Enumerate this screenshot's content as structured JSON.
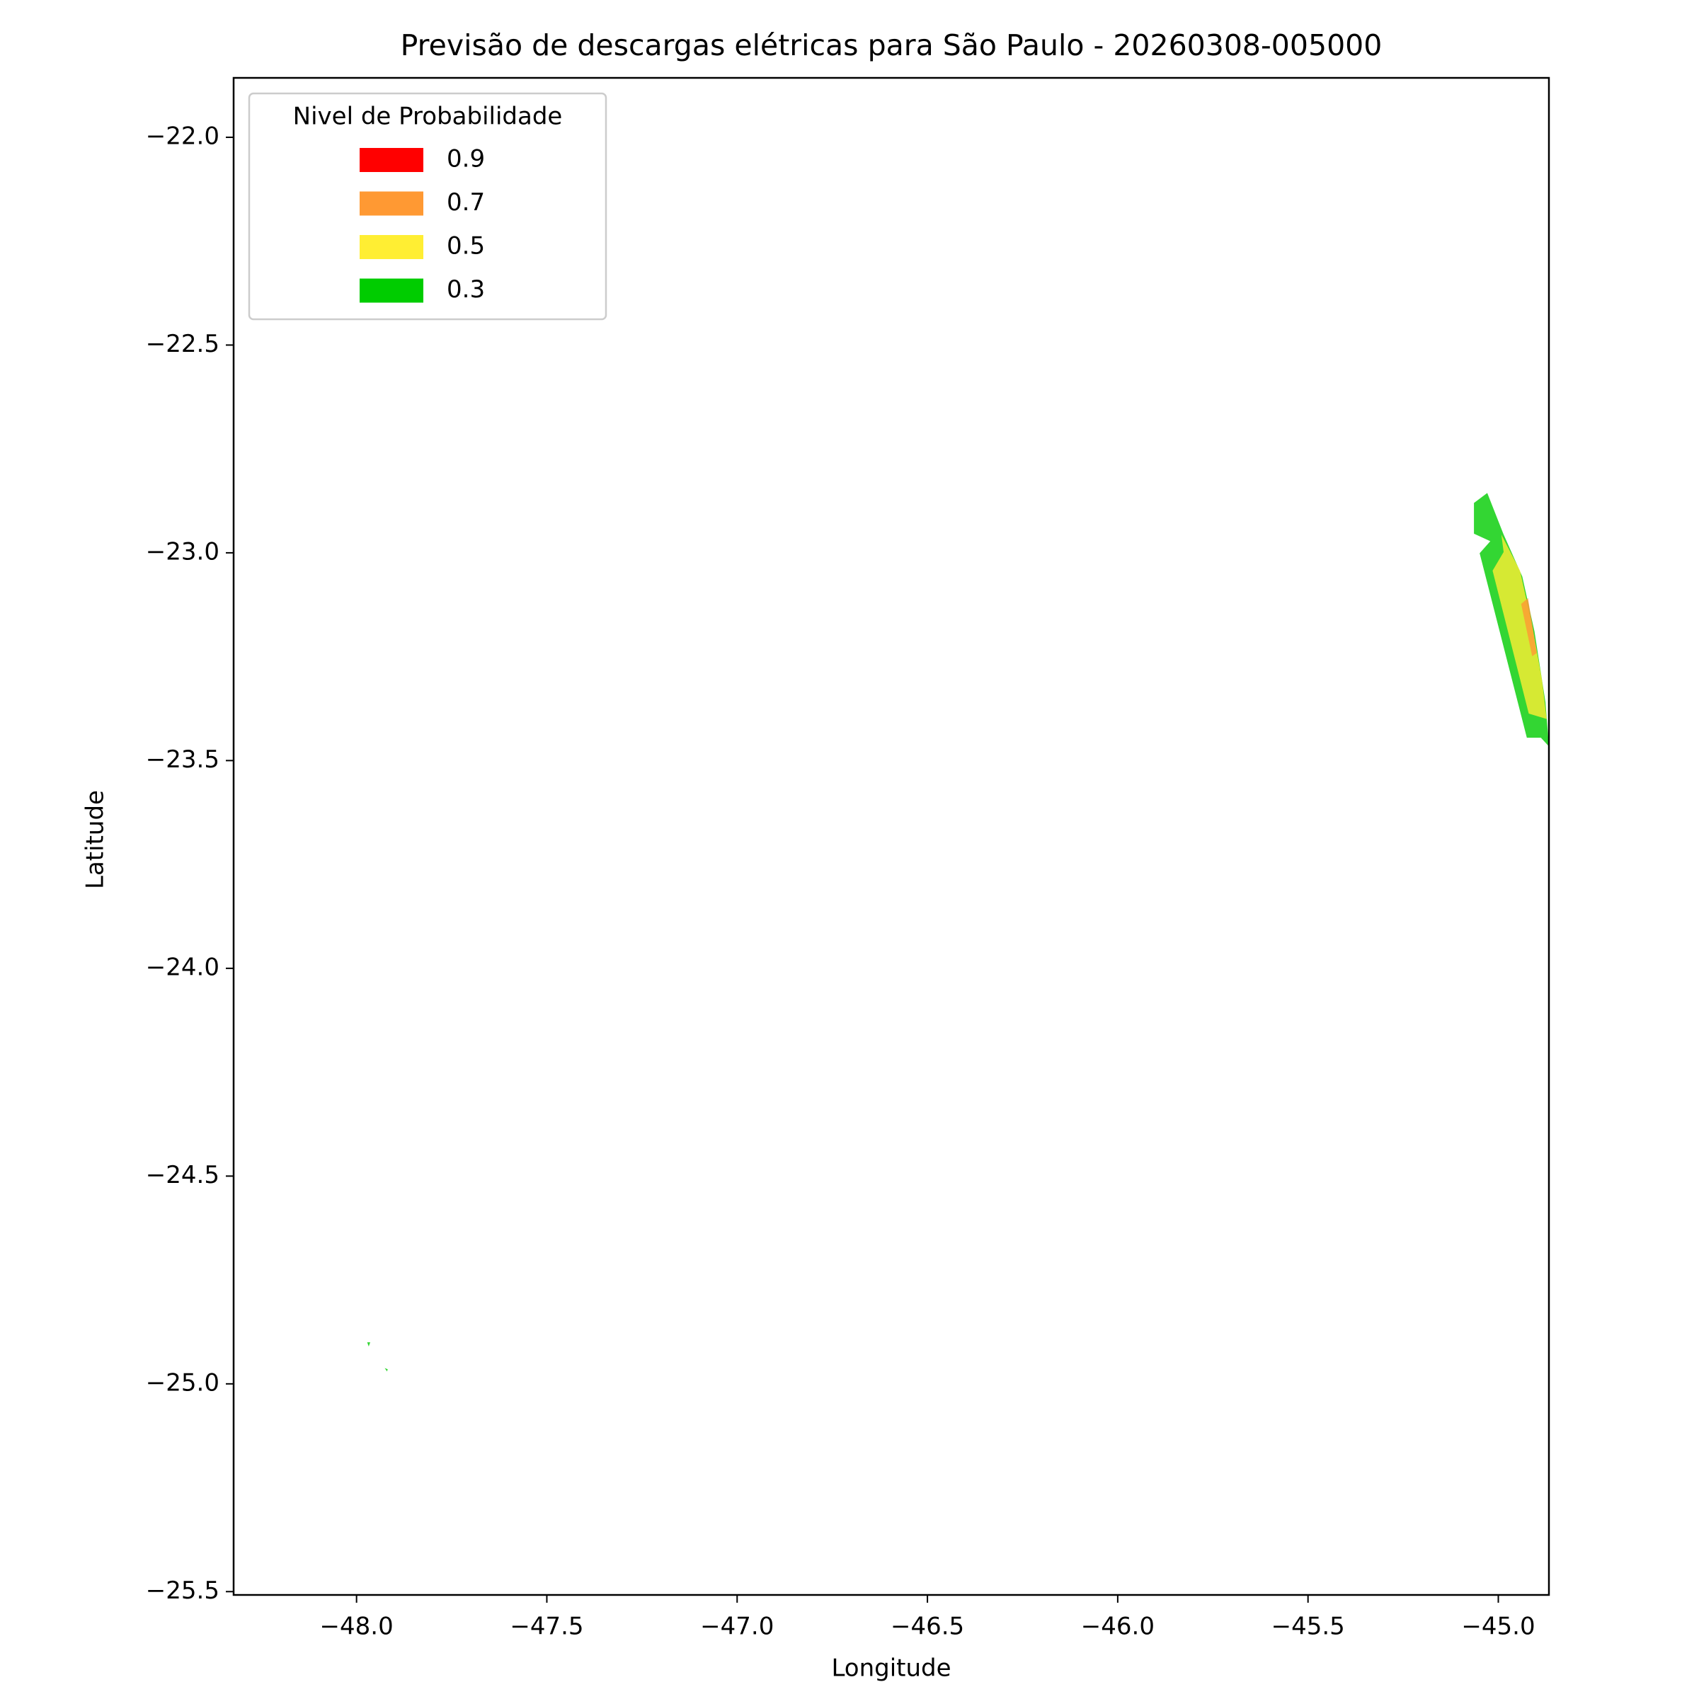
{
  "chart_data": {
    "type": "contour",
    "title": "Previsão de descargas elétricas para São Paulo - 20260308-005000",
    "x_label": "Longitude",
    "y_label": "Latitude",
    "legend_title": "Nivel de Probabilidade",
    "legend": "upper left",
    "xlim": [
      -48.323,
      -44.867
    ],
    "ylim": [
      -25.508,
      -21.857
    ],
    "xticks": [
      {
        "value": -48.0,
        "label": "−48.0"
      },
      {
        "value": -47.5,
        "label": "−47.5"
      },
      {
        "value": -47.0,
        "label": "−47.0"
      },
      {
        "value": -46.5,
        "label": "−46.5"
      },
      {
        "value": -46.0,
        "label": "−46.0"
      },
      {
        "value": -45.5,
        "label": "−45.5"
      },
      {
        "value": -45.0,
        "label": "−45.0"
      }
    ],
    "yticks": [
      {
        "value": -22.0,
        "label": "−22.0"
      },
      {
        "value": -22.5,
        "label": "−22.5"
      },
      {
        "value": -23.0,
        "label": "−23.0"
      },
      {
        "value": -23.5,
        "label": "−23.5"
      },
      {
        "value": -24.0,
        "label": "−24.0"
      },
      {
        "value": -24.5,
        "label": "−24.5"
      },
      {
        "value": -25.0,
        "label": "−25.0"
      },
      {
        "value": -25.5,
        "label": "−25.5"
      }
    ],
    "series": [
      {
        "name": "0.9",
        "color": "#ff0000",
        "polygons": []
      },
      {
        "name": "0.7",
        "color": "#ff9933",
        "polygons": [
          {
            "x": [
              -44.94,
              -44.922,
              -44.899,
              -44.911
            ],
            "y": [
              -23.123,
              -23.109,
              -23.241,
              -23.249
            ]
          }
        ]
      },
      {
        "name": "0.5",
        "color": "#ffee33",
        "polygons": [
          {
            "x": [
              -44.992,
              -44.943,
              -44.911,
              -44.885,
              -44.873,
              -44.92,
              -45.015,
              -44.986
            ],
            "y": [
              -22.956,
              -23.043,
              -23.175,
              -23.307,
              -23.4,
              -23.387,
              -23.043,
              -22.998
            ]
          }
        ]
      },
      {
        "name": "0.3",
        "color": "#00cc00",
        "polygons": [
          {
            "x": [
              -45.064,
              -45.029,
              -44.986,
              -44.937,
              -44.905,
              -44.876,
              -44.867,
              -44.888,
              -44.925,
              -45.049,
              -45.021,
              -45.064
            ],
            "y": [
              -22.88,
              -22.856,
              -22.956,
              -23.057,
              -23.189,
              -23.36,
              -23.466,
              -23.445,
              -23.445,
              -23.001,
              -22.972,
              -22.954
            ]
          },
          {
            "x": [
              -47.972,
              -47.964,
              -47.968
            ],
            "y": [
              -24.9,
              -24.9,
              -24.91
            ]
          },
          {
            "x": [
              -47.926,
              -47.918,
              -47.92
            ],
            "y": [
              -24.962,
              -24.965,
              -24.97
            ]
          }
        ]
      }
    ]
  }
}
